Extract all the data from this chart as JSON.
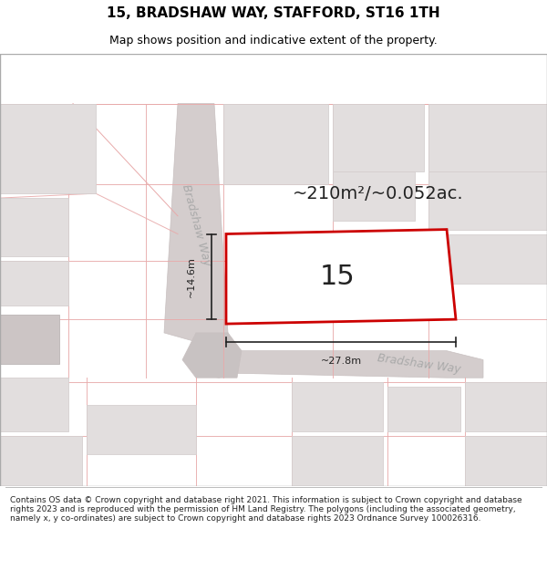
{
  "title_line1": "15, BRADSHAW WAY, STAFFORD, ST16 1TH",
  "title_line2": "Map shows position and indicative extent of the property.",
  "area_text": "~210m²/~0.052ac.",
  "number_label": "15",
  "dim_width": "~27.8m",
  "dim_height": "~14.6m",
  "road_label_left": "Bradshaw Way",
  "road_label_right": "Bradshaw Way",
  "footer_text": "Contains OS data © Crown copyright and database right 2021. This information is subject to Crown copyright and database rights 2023 and is reproduced with the permission of HM Land Registry. The polygons (including the associated geometry, namely x, y co-ordinates) are subject to Crown copyright and database rights 2023 Ordnance Survey 100026316.",
  "map_bg": "#f7f2f2",
  "road_fill": "#d4cdcd",
  "road_edge": "#c8c0c0",
  "block_fill": "#e2dede",
  "block_edge": "#d5cfcf",
  "block_dark_fill": "#ccc5c5",
  "pink_line": "#e8aaaa",
  "plot_outline": "#cc0000",
  "plot_fill": "#ffffff",
  "dim_color": "#222222",
  "road_text_color": "#aaaaaa",
  "title_fs": 11,
  "subtitle_fs": 9,
  "area_fs": 14,
  "num_fs": 22,
  "dim_fs": 8,
  "road_fs": 9,
  "footer_fs": 6.5
}
